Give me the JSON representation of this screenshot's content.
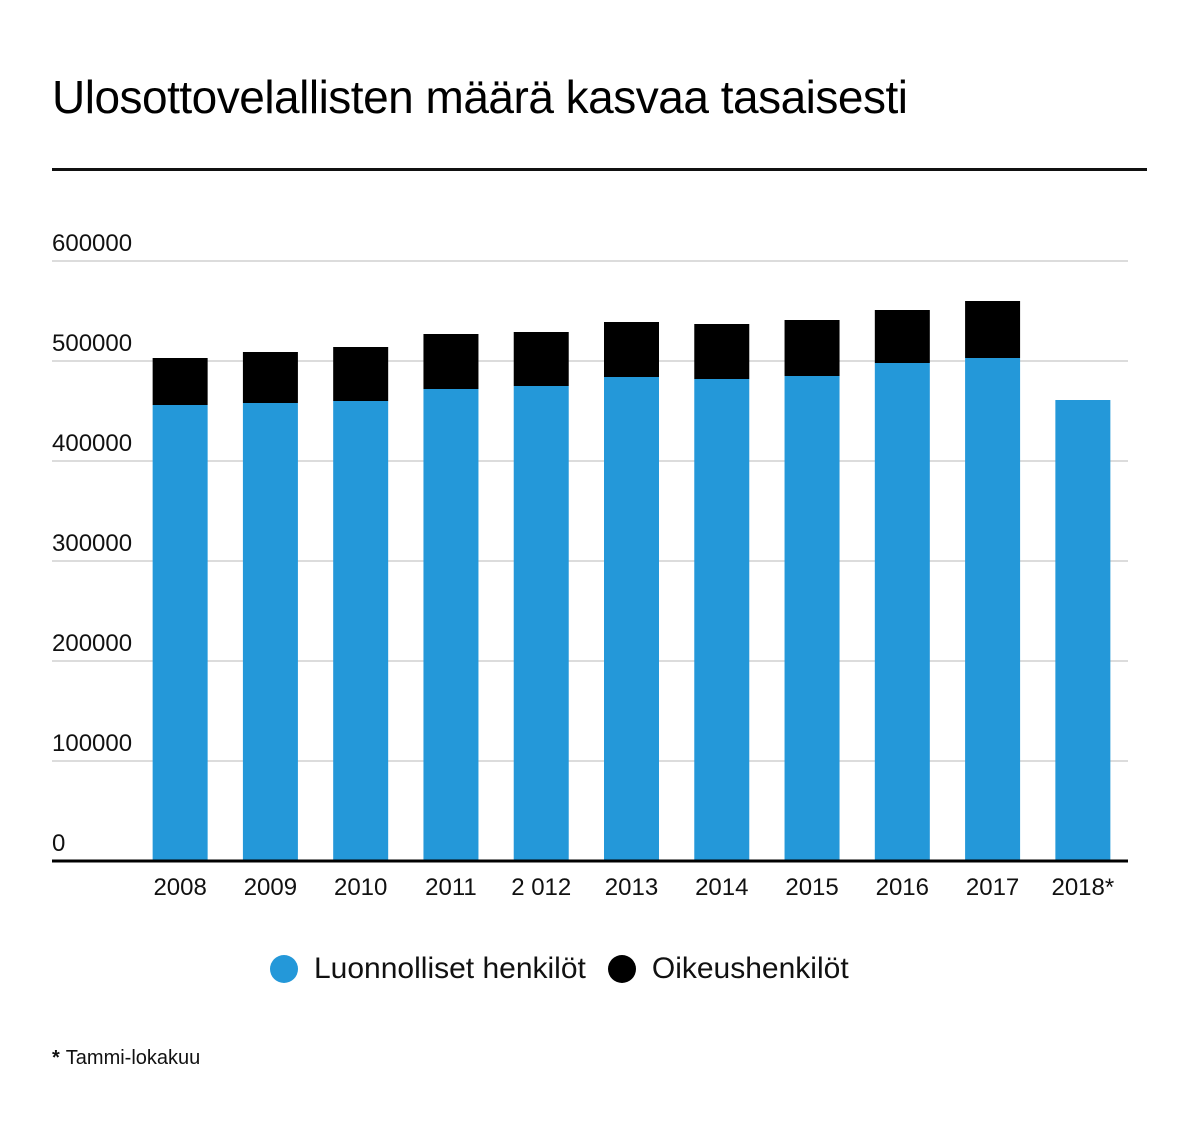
{
  "title": "Ulosottovelallisten määrä kasvaa tasaisesti",
  "footnote": {
    "marker": "*",
    "text": "Tammi-lokakuu"
  },
  "colors": {
    "luonnolliset": "#2498d9",
    "oikeus": "#000000",
    "grid": "#c8c8c8",
    "axis": "#000000"
  },
  "chart_data": {
    "type": "bar",
    "stacked": true,
    "categories": [
      "2008",
      "2009",
      "2010",
      "2011",
      "2 012",
      "2013",
      "2014",
      "2015",
      "2016",
      "2017",
      "2018*"
    ],
    "series": [
      {
        "name": "Luonnolliset henkilöt",
        "color": "#2498d9",
        "values": [
          456000,
          458000,
          460000,
          472000,
          475000,
          484000,
          482000,
          485000,
          498000,
          503000,
          461000
        ]
      },
      {
        "name": "Oikeushenkilöt",
        "color": "#000000",
        "values": [
          47000,
          51000,
          54000,
          55000,
          54000,
          55000,
          55000,
          56000,
          53000,
          57000,
          0
        ]
      }
    ],
    "yticks": [
      "0",
      "100000",
      "200000",
      "300000",
      "400000",
      "500000",
      "600000"
    ],
    "ylim": [
      0,
      600000
    ],
    "grid": true,
    "legend": "bottom"
  }
}
